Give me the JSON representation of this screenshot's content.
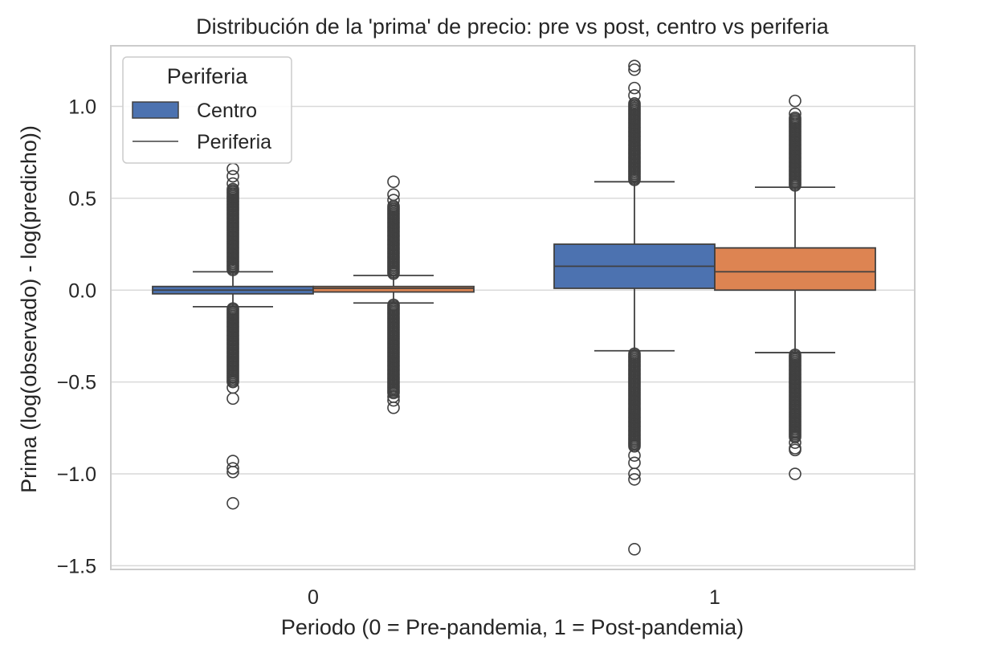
{
  "chart_data": {
    "type": "box",
    "title": "Distribución de la 'prima' de precio: pre vs post, centro vs periferia",
    "xlabel": "Periodo (0 = Pre-pandemia, 1 = Post-pandemia)",
    "ylabel": "Prima (log(observado) - log(predicho))",
    "categories": [
      "0",
      "1"
    ],
    "ylim": [
      -1.52,
      1.33
    ],
    "yticks": [
      {
        "value": 1.0,
        "label": "1.0"
      },
      {
        "value": 0.5,
        "label": "0.5"
      },
      {
        "value": 0.0,
        "label": "0.0"
      },
      {
        "value": -0.5,
        "label": "−0.5"
      },
      {
        "value": -1.0,
        "label": "−1.0"
      },
      {
        "value": -1.5,
        "label": "−1.5"
      }
    ],
    "grid": true,
    "legend": {
      "title": "Periferia",
      "placement": "top-left",
      "entries": [
        {
          "label": "Centro",
          "marker": "box"
        },
        {
          "label": "Periferia",
          "marker": "line"
        }
      ]
    },
    "series": [
      {
        "color": "#4c72b0",
        "boxes": [
          {
            "category": "0",
            "whislo": -0.09,
            "q1": -0.02,
            "med": 0.0,
            "q3": 0.02,
            "whishi": 0.1,
            "fliers_high_range": [
              0.1,
              0.55
            ],
            "fliers_high": [
              0.58,
              0.62,
              0.66
            ],
            "fliers_low_range": [
              -0.09,
              -0.5
            ],
            "fliers_low": [
              -0.53,
              -0.59,
              -0.93,
              -0.97,
              -0.99,
              -1.16
            ]
          },
          {
            "category": "1",
            "whislo": -0.33,
            "q1": 0.01,
            "med": 0.13,
            "q3": 0.25,
            "whishi": 0.59,
            "fliers_high_range": [
              0.59,
              1.02
            ],
            "fliers_high": [
              1.06,
              1.1,
              1.2,
              1.22
            ],
            "fliers_low_range": [
              -0.33,
              -0.85
            ],
            "fliers_low": [
              -0.9,
              -0.94,
              -1.0,
              -1.03,
              -1.41
            ]
          }
        ]
      },
      {
        "color": "#dd8452",
        "boxes": [
          {
            "category": "0",
            "whislo": -0.07,
            "q1": -0.01,
            "med": 0.01,
            "q3": 0.02,
            "whishi": 0.08,
            "fliers_high_range": [
              0.08,
              0.46
            ],
            "fliers_high": [
              0.49,
              0.52,
              0.59
            ],
            "fliers_low_range": [
              -0.07,
              -0.56
            ],
            "fliers_low": [
              -0.58,
              -0.6,
              -0.64
            ]
          },
          {
            "category": "1",
            "whislo": -0.34,
            "q1": 0.0,
            "med": 0.1,
            "q3": 0.23,
            "whishi": 0.56,
            "fliers_high_range": [
              0.56,
              0.94
            ],
            "fliers_high": [
              0.96,
              1.03
            ],
            "fliers_low_range": [
              -0.34,
              -0.8
            ],
            "fliers_low": [
              -0.83,
              -0.86,
              -0.87,
              -1.0
            ]
          }
        ]
      }
    ]
  }
}
